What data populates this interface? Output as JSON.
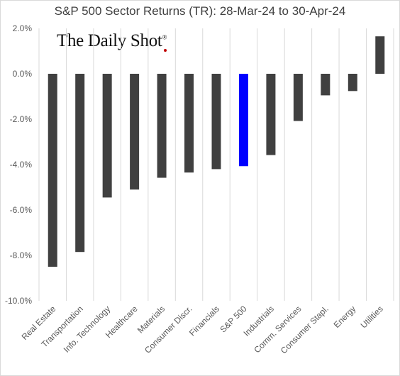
{
  "chart_data": {
    "type": "bar",
    "title": "S&P 500 Sector Returns (TR): 28-Mar-24 to 30-Apr-24",
    "categories": [
      "Real Estate",
      "Transportation",
      "Info. Technology",
      "Healthcare",
      "Materials",
      "Consumer Discr.",
      "Financials",
      "S&P 500",
      "Industrials",
      "Comm. Services",
      "Consumer Stapl.",
      "Energy",
      "Utilities"
    ],
    "values": [
      -8.5,
      -7.85,
      -5.45,
      -5.1,
      -4.58,
      -4.35,
      -4.2,
      -4.07,
      -3.58,
      -2.08,
      -0.95,
      -0.76,
      1.65
    ],
    "highlight_category": "S&P 500",
    "bar_color": "#404040",
    "highlight_color": "#0000ff",
    "ylim": [
      -10,
      2
    ],
    "yticks": [
      2,
      0,
      -2,
      -4,
      -6,
      -8,
      -10
    ],
    "ytick_labels": [
      "2.0%",
      "0.0%",
      "-2.0%",
      "-4.0%",
      "-6.0%",
      "-8.0%",
      "-10.0%"
    ],
    "xlabel": "",
    "ylabel": "",
    "grid": "vertical",
    "legend": "none"
  },
  "watermark": {
    "text": "The Daily Shot",
    "mark": "®"
  }
}
